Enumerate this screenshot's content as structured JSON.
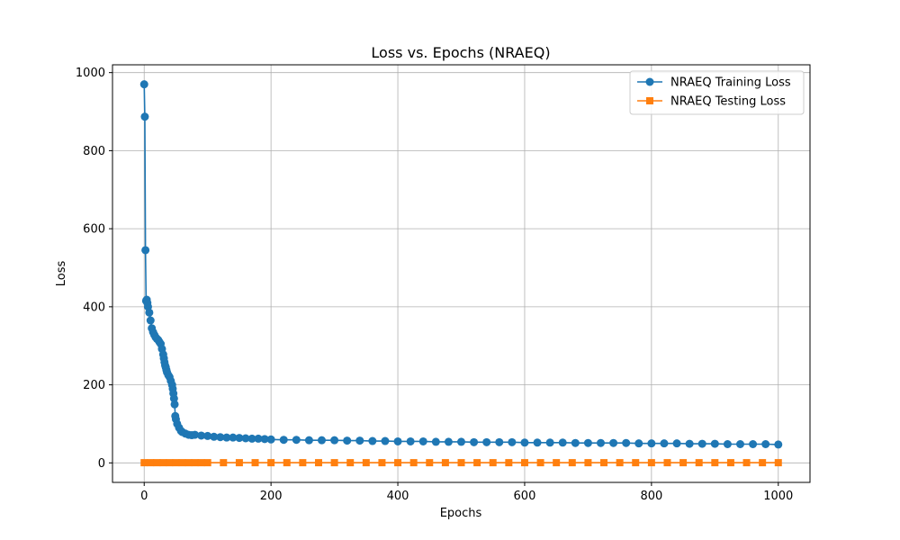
{
  "chart_data": {
    "type": "line",
    "title": "Loss vs. Epochs (NRAEQ)",
    "xlabel": "Epochs",
    "ylabel": "Loss",
    "xlim": [
      -50,
      1050
    ],
    "ylim": [
      -50,
      1020
    ],
    "xticks": [
      0,
      200,
      400,
      600,
      800,
      1000
    ],
    "yticks": [
      0,
      200,
      400,
      600,
      800,
      1000
    ],
    "grid": true,
    "legend_position": "top-right",
    "series": [
      {
        "name": "NRAEQ Training Loss",
        "color": "#1f77b4",
        "marker": "circle",
        "x": [
          0,
          1,
          2,
          3,
          4,
          5,
          6,
          8,
          10,
          12,
          14,
          16,
          18,
          20,
          22,
          24,
          26,
          28,
          30,
          31,
          32,
          33,
          34,
          35,
          36,
          38,
          40,
          42,
          44,
          45,
          46,
          47,
          48,
          49,
          50,
          52,
          55,
          58,
          60,
          65,
          70,
          75,
          80,
          90,
          100,
          110,
          120,
          130,
          140,
          150,
          160,
          170,
          180,
          190,
          200,
          220,
          240,
          260,
          280,
          300,
          320,
          340,
          360,
          380,
          400,
          420,
          440,
          460,
          480,
          500,
          520,
          540,
          560,
          580,
          600,
          620,
          640,
          660,
          680,
          700,
          720,
          740,
          760,
          780,
          800,
          820,
          840,
          860,
          880,
          900,
          920,
          940,
          960,
          980,
          1000
        ],
        "values": [
          970,
          887,
          545,
          415,
          418,
          410,
          400,
          385,
          365,
          345,
          335,
          328,
          322,
          318,
          315,
          310,
          305,
          292,
          278,
          268,
          258,
          250,
          245,
          238,
          232,
          225,
          220,
          210,
          200,
          190,
          178,
          165,
          150,
          120,
          112,
          100,
          90,
          82,
          79,
          75,
          72,
          71,
          72,
          70,
          69,
          67,
          66,
          65,
          65,
          64,
          63,
          62,
          62,
          61,
          60,
          59,
          59,
          58,
          58,
          58,
          57,
          57,
          56,
          56,
          55,
          55,
          55,
          54,
          54,
          54,
          53,
          53,
          53,
          53,
          52,
          52,
          52,
          52,
          51,
          51,
          51,
          51,
          51,
          50,
          50,
          50,
          50,
          49,
          49,
          49,
          48,
          48,
          48,
          48,
          47
        ]
      },
      {
        "name": "NRAEQ Testing Loss",
        "color": "#ff7f0e",
        "marker": "square",
        "x": [
          0,
          10,
          20,
          30,
          40,
          50,
          60,
          70,
          80,
          90,
          100,
          125,
          150,
          175,
          200,
          225,
          250,
          275,
          300,
          325,
          350,
          375,
          400,
          425,
          450,
          475,
          500,
          525,
          550,
          575,
          600,
          625,
          650,
          675,
          700,
          725,
          750,
          775,
          800,
          825,
          850,
          875,
          900,
          925,
          950,
          975,
          1000
        ],
        "values": [
          0.5,
          0.5,
          0.5,
          0.5,
          0.5,
          0.5,
          0.5,
          0.5,
          0.5,
          0.5,
          0.5,
          0.5,
          0.5,
          0.5,
          0.5,
          0.5,
          0.5,
          0.5,
          0.5,
          0.5,
          0.5,
          0.5,
          0.5,
          0.5,
          0.5,
          0.5,
          0.5,
          0.5,
          0.5,
          0.5,
          0.5,
          0.5,
          0.5,
          0.5,
          0.5,
          0.5,
          0.5,
          0.5,
          0.5,
          0.5,
          0.5,
          0.5,
          0.5,
          0.5,
          0.5,
          0.5,
          0.5
        ]
      }
    ]
  }
}
